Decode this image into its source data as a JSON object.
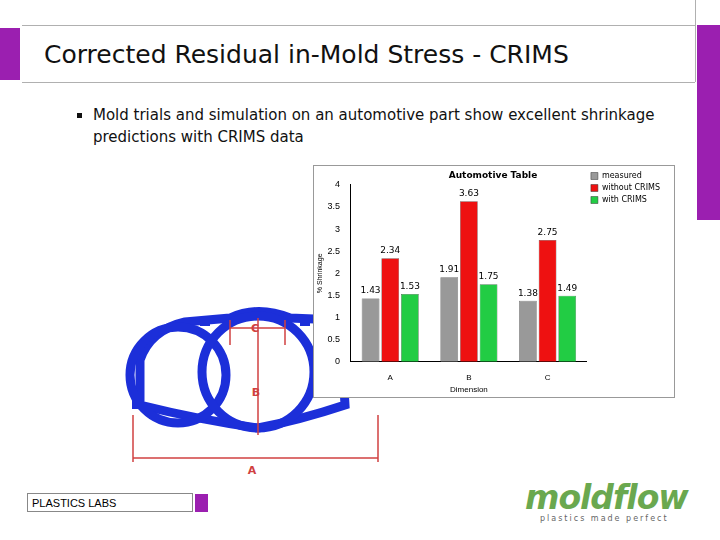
{
  "slide": {
    "title": "Corrected Residual in-Mold Stress - CRIMS",
    "bullet": "Mold trials and simulation on an automotive part show excellent shrinkage predictions with CRIMS data",
    "footer": "PLASTICS LABS",
    "logo": "moldflow",
    "tagline": "plastics made perfect",
    "diagram_labels": [
      "A",
      "B",
      "C"
    ]
  },
  "chart_data": {
    "type": "bar",
    "title": "Automotive Table",
    "x_label": "Dimension",
    "y_label": "% Shrinkage",
    "categories": [
      "A",
      "B",
      "C"
    ],
    "series": [
      {
        "name": "measured",
        "color": "#999999",
        "values": [
          1.43,
          1.91,
          1.38
        ]
      },
      {
        "name": "without CRIMS",
        "color": "#ee1111",
        "values": [
          2.34,
          3.63,
          2.75
        ]
      },
      {
        "name": "with CRIMS",
        "color": "#22cc44",
        "values": [
          1.53,
          1.75,
          1.49
        ]
      }
    ],
    "ylim": [
      0,
      4
    ],
    "yticks": [
      0,
      0.5,
      1,
      1.5,
      2,
      2.5,
      3,
      3.5,
      4
    ],
    "grid": false,
    "legend": "top-right",
    "data_labels": true
  }
}
